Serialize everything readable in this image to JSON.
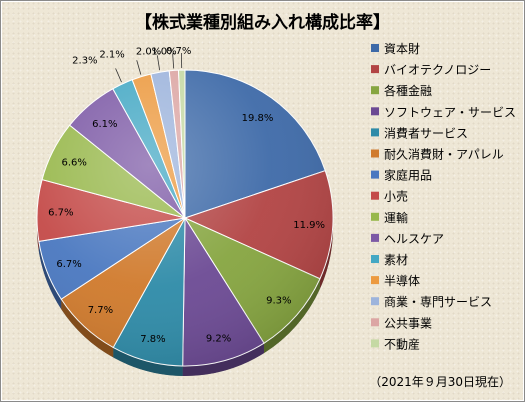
{
  "chart_data": {
    "type": "pie",
    "title": "【株式業種別組み入れ構成比率】",
    "slices": [
      {
        "name": "資本財",
        "value": 19.8,
        "label": "19.8%",
        "color": "#3e6aa8"
      },
      {
        "name": "バイオテクノロジー",
        "value": 11.9,
        "label": "11.9%",
        "color": "#b24444"
      },
      {
        "name": "各種金融",
        "value": 9.3,
        "label": "9.3%",
        "color": "#86a540"
      },
      {
        "name": "ソフトウェア・サービス",
        "value": 9.2,
        "label": "9.2%",
        "color": "#6c4a94"
      },
      {
        "name": "消費者サービス",
        "value": 7.8,
        "label": "7.8%",
        "color": "#2e8ba8"
      },
      {
        "name": "耐久消費財・アパレル",
        "value": 7.7,
        "label": "7.7%",
        "color": "#d07a2c"
      },
      {
        "name": "家庭用品",
        "value": 6.7,
        "label": "6.7%",
        "color": "#4a78c0"
      },
      {
        "name": "小売",
        "value": 6.7,
        "label": "6.7%",
        "color": "#c44a48"
      },
      {
        "name": "運輸",
        "value": 6.6,
        "label": "6.6%",
        "color": "#98b84c"
      },
      {
        "name": "ヘルスケア",
        "value": 6.1,
        "label": "6.1%",
        "color": "#7d5aa6"
      },
      {
        "name": "素材",
        "value": 2.3,
        "label": "2.3%",
        "color": "#44a8c4"
      },
      {
        "name": "半導体",
        "value": 2.1,
        "label": "2.1%",
        "color": "#ec9a40"
      },
      {
        "name": "商業・専門サービス",
        "value": 2.0,
        "label": "2.0%",
        "color": "#9db4dc"
      },
      {
        "name": "公共事業",
        "value": 1.0,
        "label": "1.0%",
        "color": "#dca6a4"
      },
      {
        "name": "不動産",
        "value": 0.7,
        "label": "0.7%",
        "color": "#c5d9a4"
      }
    ],
    "legend_position": "right",
    "start": "top, clockwise"
  },
  "footnote": "（2021年９月30日現在）"
}
